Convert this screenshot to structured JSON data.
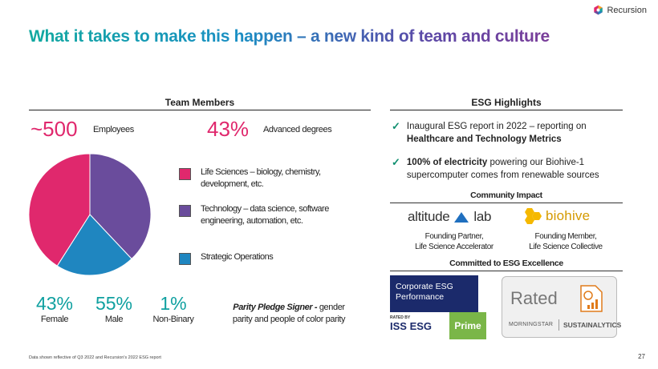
{
  "brand": {
    "name": "Recursion",
    "logo_icon": "recursion-hexagon-icon"
  },
  "title": "What it takes to make this happen – a new kind of team and culture",
  "team": {
    "header": "Team Members",
    "employees_value": "~500",
    "employees_label": "Employees",
    "degrees_value": "43%",
    "degrees_label": "Advanced degrees",
    "legend": [
      {
        "label": "Life Sciences – biology, chemistry, development, etc.",
        "color": "#e0286d"
      },
      {
        "label": "Technology – data science, software engineering, automation, etc.",
        "color": "#6a4c9c"
      },
      {
        "label": "Strategic Operations",
        "color": "#1f86c0"
      }
    ],
    "gender": [
      {
        "value": "43%",
        "label": "Female"
      },
      {
        "value": "55%",
        "label": "Male"
      },
      {
        "value": "1%",
        "label": "Non-Binary"
      }
    ],
    "parity_bold": "Parity Pledge Signer -",
    "parity_rest": " gender parity and people of color parity"
  },
  "esg": {
    "header": "ESG Highlights",
    "bullets": [
      {
        "pre": "Inaugural ESG report in 2022 – reporting on ",
        "bold": "Healthcare and Technology Metrics",
        "post": ""
      },
      {
        "pre": "",
        "bold": "100% of electricity",
        "post": " powering our Biohive-1 supercomputer comes from renewable sources"
      }
    ],
    "community_header": "Community Impact",
    "partners": [
      {
        "name_a": "altitude",
        "name_b": "lab",
        "caption_1": "Founding Partner,",
        "caption_2": "Life Science Accelerator"
      },
      {
        "name": "biohive",
        "caption_1": "Founding Member,",
        "caption_2": "Life Science Collective"
      }
    ],
    "committed_header": "Committed to ESG Excellence",
    "iss": {
      "line1": "Corporate ESG",
      "line2": "Performance",
      "rated_by": "RATED BY",
      "brand": "ISS ESG",
      "badge": "Prime"
    },
    "sustainalytics": {
      "rated": "Rated",
      "brand1": "MORNINGSTAR",
      "brand2": "SUSTAINALYTICS"
    }
  },
  "chart_data": {
    "type": "pie",
    "slices": [
      {
        "label": "Life Sciences",
        "value": 41,
        "color": "#e0286d"
      },
      {
        "label": "Technology",
        "value": 38,
        "color": "#6a4c9c"
      },
      {
        "label": "Strategic Operations",
        "value": 21,
        "color": "#1f86c0"
      }
    ]
  },
  "footnote": "Data shown reflective of Q3 2022 and Recursion's 2022 ESG report",
  "page_number": "27"
}
